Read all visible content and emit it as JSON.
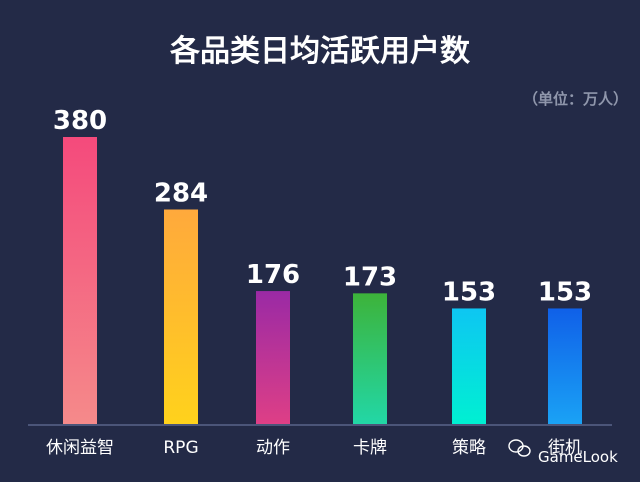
{
  "chart_data": {
    "type": "bar",
    "title": "各品类日均活跃用户数",
    "unit_note": "（单位：万人）",
    "categories": [
      "休闲益智",
      "RPG",
      "动作",
      "卡牌",
      "策略",
      "街机"
    ],
    "values": [
      380,
      284,
      176,
      173,
      153,
      153
    ],
    "ylim": [
      0,
      400
    ],
    "grid": false,
    "bar_gradients": [
      [
        "#f44a7c",
        "#f58a8a"
      ],
      [
        "#ffa93c",
        "#ffd21c"
      ],
      [
        "#9a2aa5",
        "#de3f86"
      ],
      [
        "#3db33a",
        "#22d7a6"
      ],
      [
        "#0ec6f2",
        "#00f0d2"
      ],
      [
        "#1060e8",
        "#1aa2f5"
      ]
    ]
  },
  "watermark": {
    "text": "GameLook",
    "icon": "wechat-icon"
  }
}
